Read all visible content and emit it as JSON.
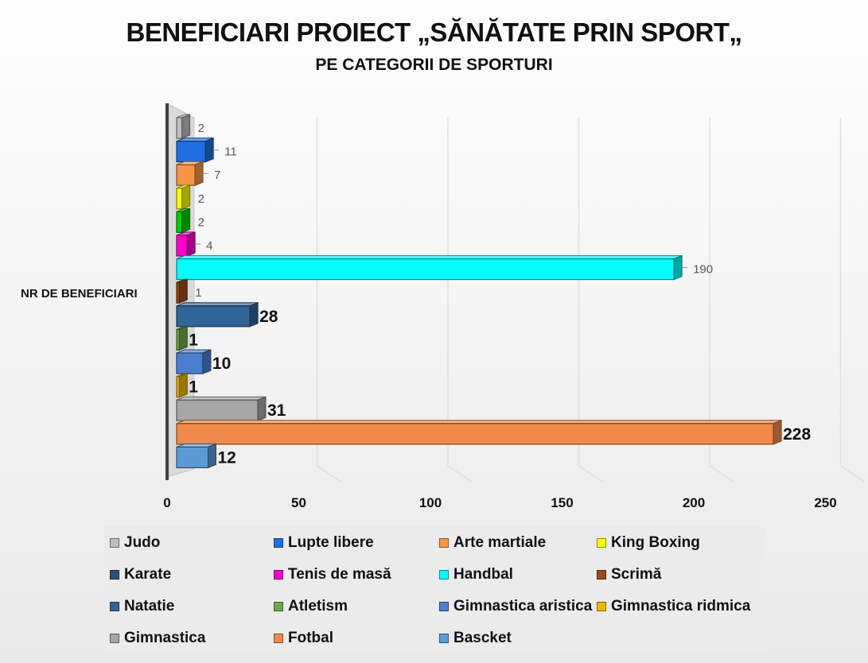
{
  "title": "BENEFICIARI PROIECT „SĂNĂTATE PRIN SPORT„",
  "subtitle": "PE CATEGORII DE SPORTURI",
  "chart_data": {
    "type": "bar",
    "orientation": "horizontal",
    "category": "NR DE BENEFICIARI",
    "xlim": [
      0,
      250
    ],
    "x_ticks": [
      "0",
      "50",
      "100",
      "150",
      "200",
      "250"
    ],
    "grid": true,
    "legend_position": "bottom",
    "series": [
      {
        "name": "Judo",
        "value": 2,
        "color": "#bfbfbf"
      },
      {
        "name": "Lupte libere",
        "value": 11,
        "color": "#1f6fe0"
      },
      {
        "name": "Arte martiale",
        "value": 7,
        "color": "#f79646"
      },
      {
        "name": "King Boxing",
        "value": 2,
        "color": "#ffff00"
      },
      {
        "name": "Karate",
        "value": 2,
        "color": "#00cc00"
      },
      {
        "name": "Tenis de masă",
        "value": 4,
        "color": "#ff00cc"
      },
      {
        "name": "Handbal",
        "value": 190,
        "color": "#00ffff"
      },
      {
        "name": "Scrimă",
        "value": 1,
        "color": "#9c4a1a"
      },
      {
        "name": "Natatie",
        "value": 28,
        "color": "#2e6596"
      },
      {
        "name": "Atletism",
        "value": 1,
        "color": "#6fa84a"
      },
      {
        "name": "Gimnastica aristica",
        "value": 10,
        "color": "#4a7fd4"
      },
      {
        "name": "Gimnastica ridmica",
        "value": 1,
        "color": "#f2b600"
      },
      {
        "name": "Gimnastica",
        "value": 31,
        "color": "#a6a6a6"
      },
      {
        "name": "Fotbal",
        "value": 228,
        "color": "#f08a48"
      },
      {
        "name": "Bascket",
        "value": 12,
        "color": "#5b9bd5"
      }
    ],
    "legend_swatch_colors": [
      "#bfbfbf",
      "#1f6fe0",
      "#f79646",
      "#ffff00",
      "#2e4f7a",
      "#ff00cc",
      "#00ffff",
      "#9c4a1a",
      "#2e6596",
      "#6fa84a",
      "#4a7fd4",
      "#f2b600",
      "#a6a6a6",
      "#f08a48",
      "#5b9bd5"
    ]
  }
}
